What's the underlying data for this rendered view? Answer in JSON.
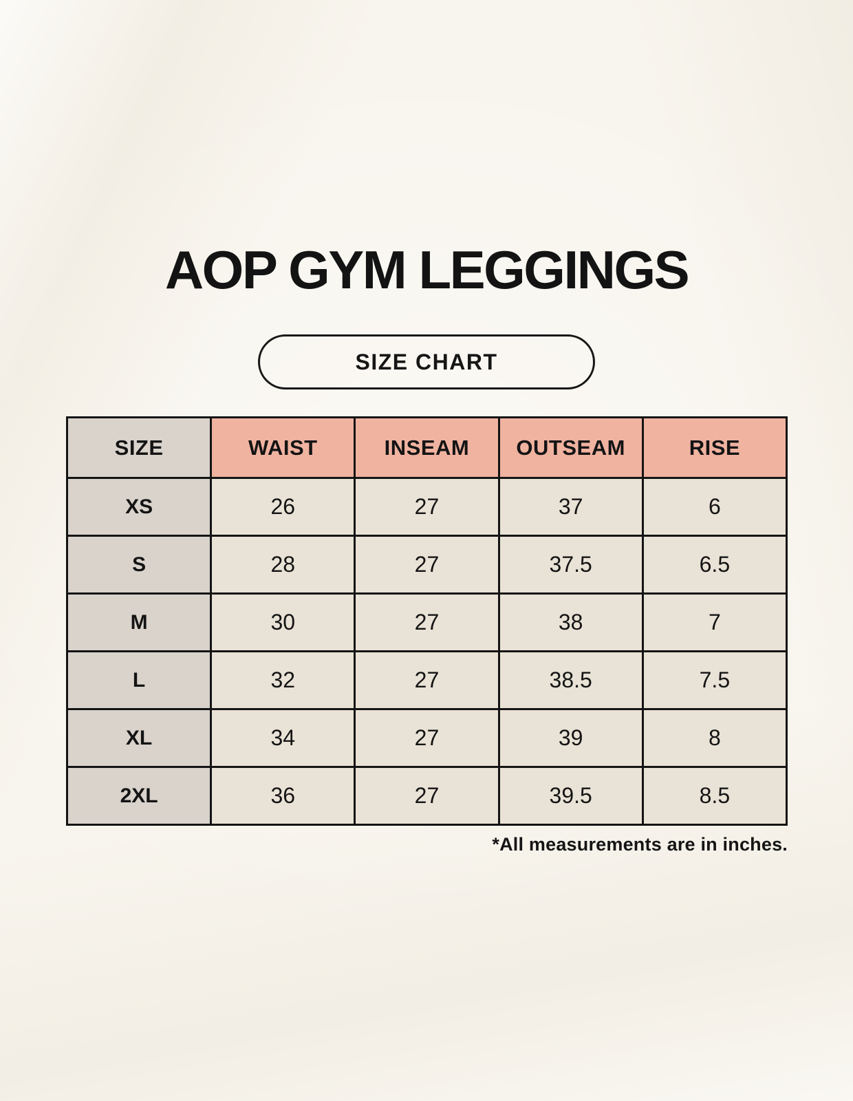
{
  "header": {
    "title": "AOP GYM LEGGINGS",
    "badge_label": "SIZE CHART"
  },
  "footnote": "*All measurements are in inches.",
  "colors": {
    "page_background": "#f8f5ee",
    "header_cell": "#f0b3a0",
    "size_cell": "#d9d3cc",
    "data_cell": "#e9e2d6",
    "border": "#141414",
    "text": "#141414"
  },
  "chart_data": {
    "type": "table",
    "title": "AOP GYM LEGGINGS",
    "units": "inches",
    "columns": [
      "SIZE",
      "WAIST",
      "INSEAM",
      "OUTSEAM",
      "RISE"
    ],
    "rows": [
      [
        "XS",
        "26",
        "27",
        "37",
        "6"
      ],
      [
        "S",
        "28",
        "27",
        "37.5",
        "6.5"
      ],
      [
        "M",
        "30",
        "27",
        "38",
        "7"
      ],
      [
        "L",
        "32",
        "27",
        "38.5",
        "7.5"
      ],
      [
        "XL",
        "34",
        "27",
        "39",
        "8"
      ],
      [
        "2XL",
        "36",
        "27",
        "39.5",
        "8.5"
      ]
    ]
  }
}
